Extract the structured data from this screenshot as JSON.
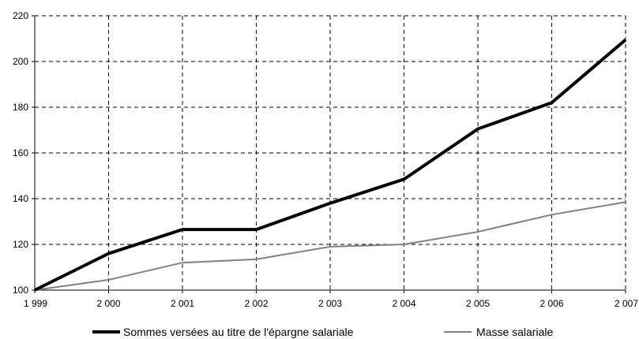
{
  "chart_data": {
    "type": "line",
    "title": "",
    "xlabel": "",
    "ylabel": "",
    "x": [
      "1 999",
      "2 000",
      "2 001",
      "2 002",
      "2 003",
      "2 004",
      "2 005",
      "2 006",
      "2 007"
    ],
    "ylim": [
      100,
      220
    ],
    "yticks": [
      "100",
      "120",
      "140",
      "160",
      "180",
      "200",
      "220"
    ],
    "grid": true,
    "legend_position": "bottom",
    "series": [
      {
        "name": "Sommes versées au titre de l'épargne salariale",
        "color": "#000000",
        "values": [
          100,
          116,
          126.5,
          126.5,
          138,
          148.5,
          170.5,
          182,
          209.5
        ]
      },
      {
        "name": "Masse salariale",
        "color": "#808080",
        "values": [
          100,
          104.5,
          112,
          113.5,
          119,
          120,
          125.5,
          133,
          138.5
        ]
      }
    ]
  }
}
